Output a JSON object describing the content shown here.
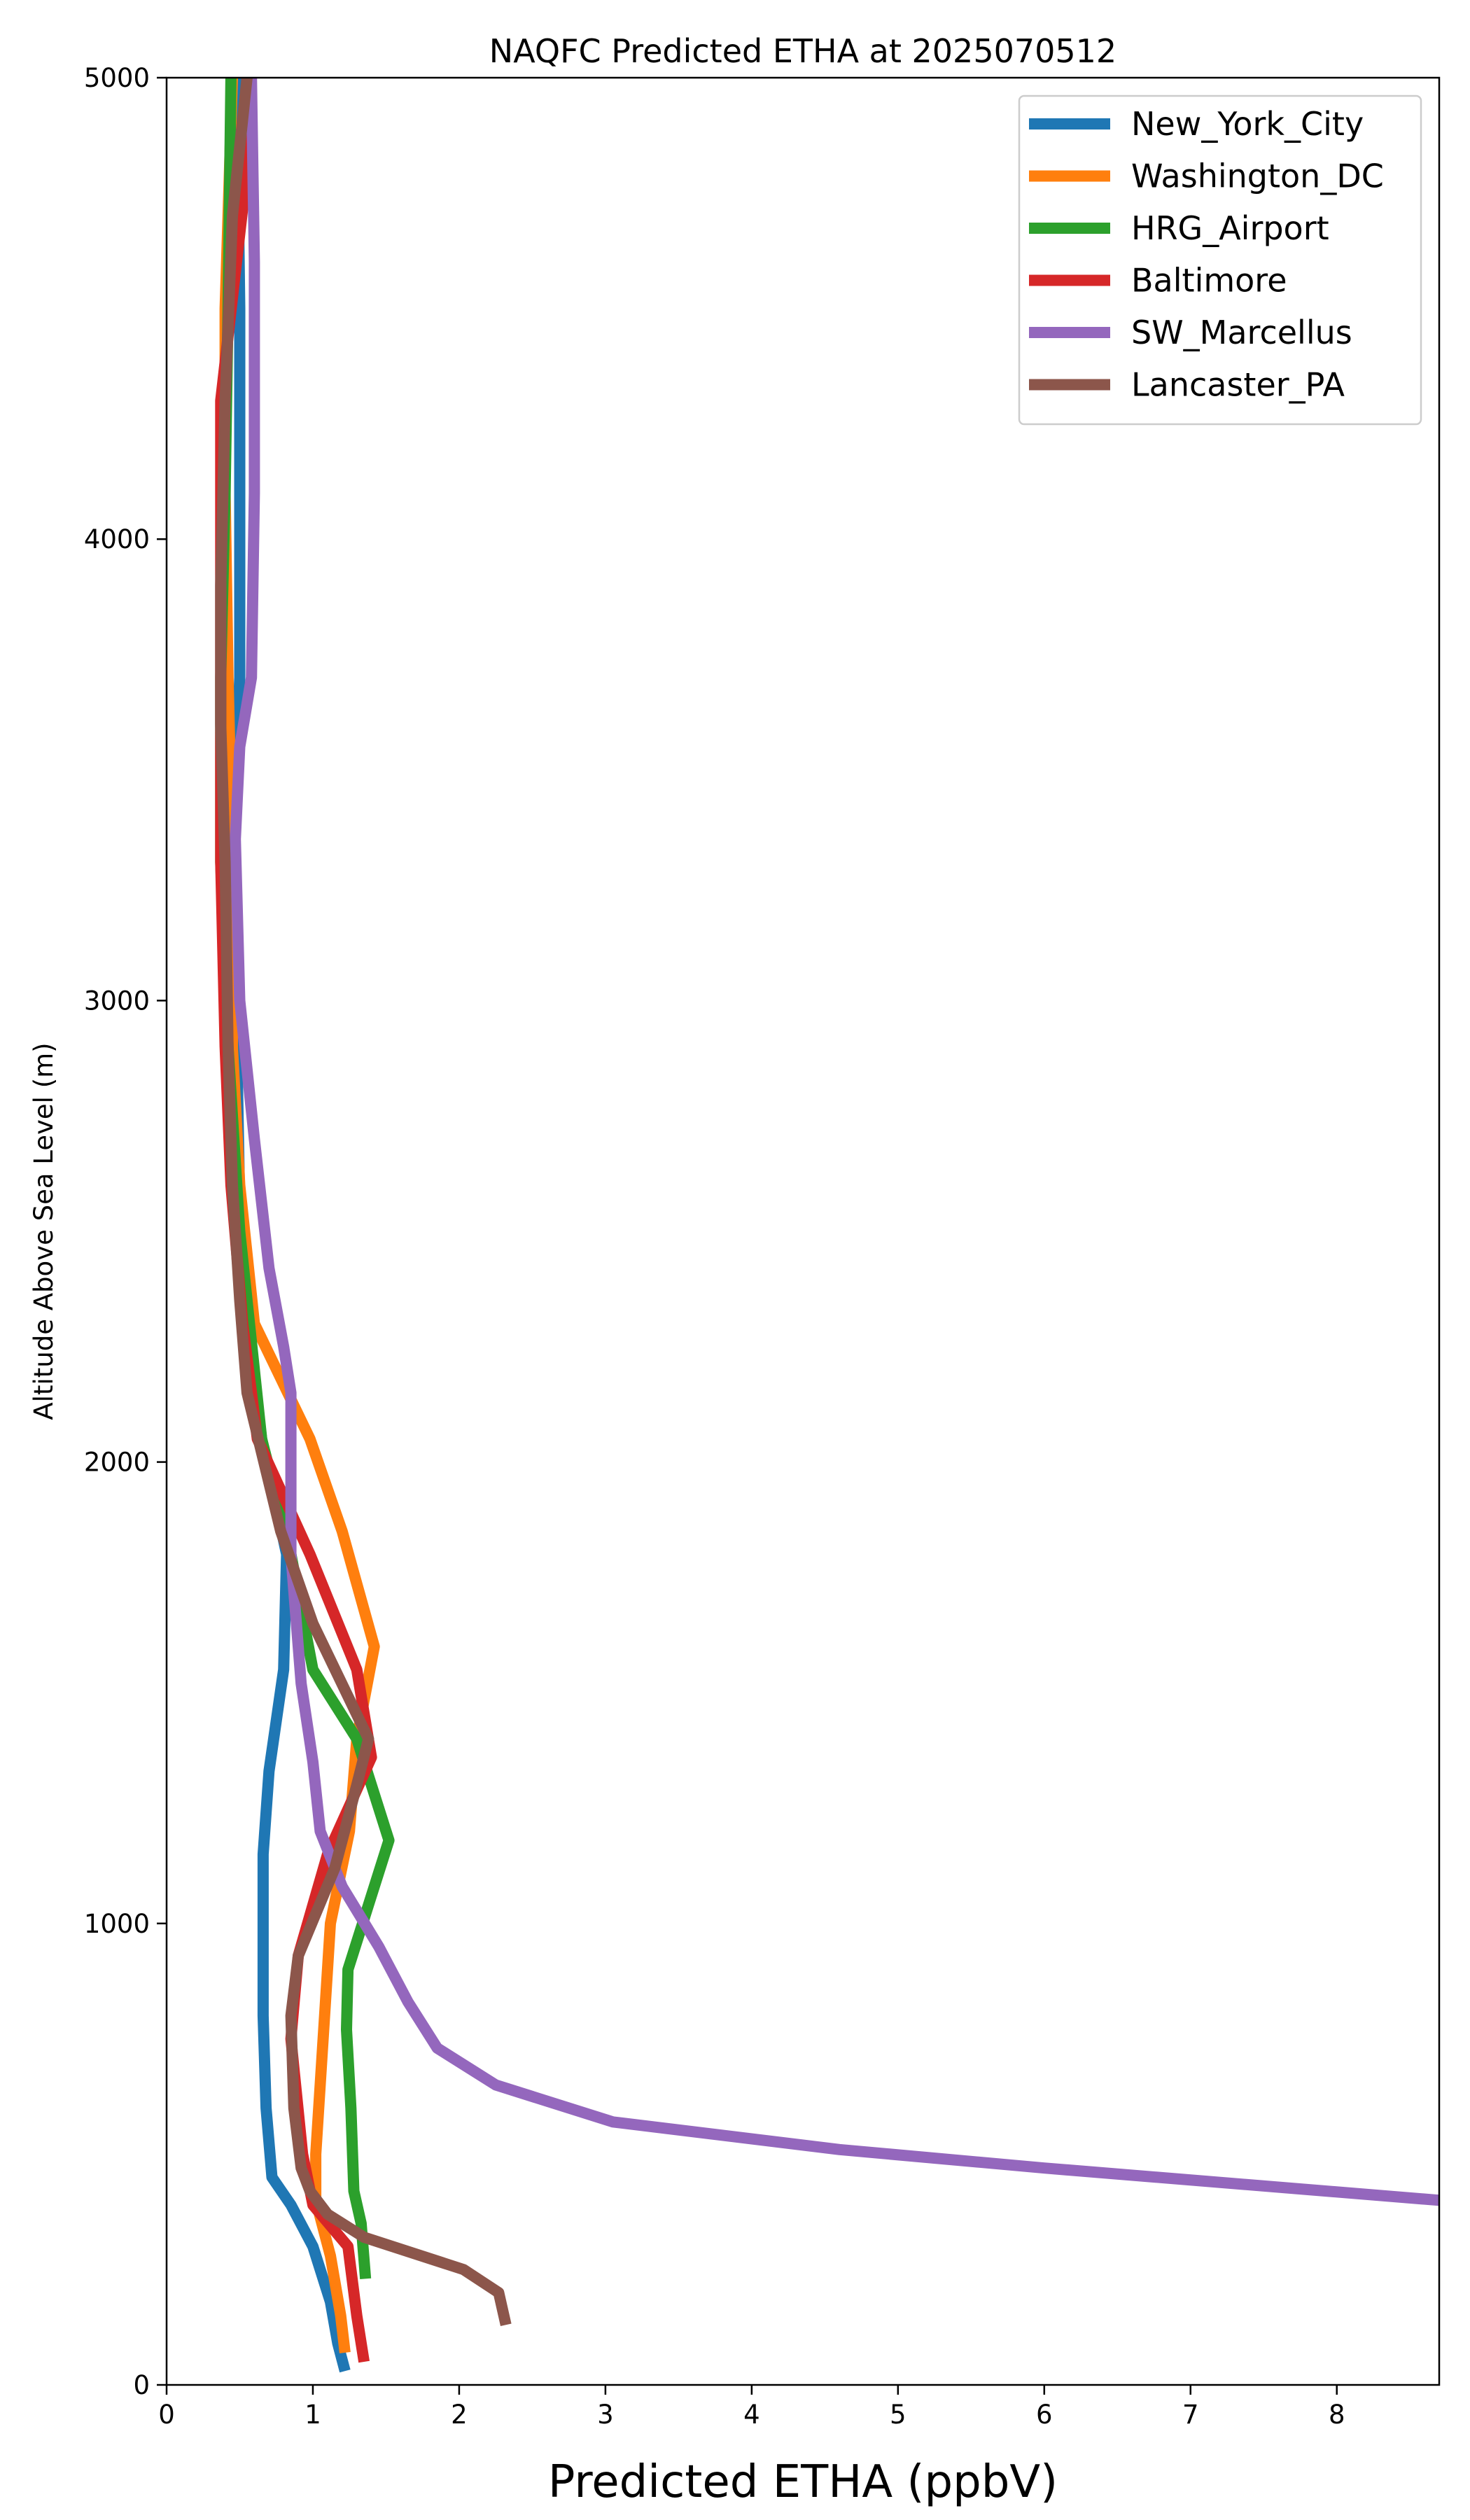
{
  "chart_data": {
    "type": "line",
    "title": "NAQFC Predicted ETHA at 2025070512",
    "xlabel": "Predicted ETHA (ppbV)",
    "ylabel": "Altitude Above Sea Level (m)",
    "xlim": [
      0,
      8.7
    ],
    "ylim": [
      0,
      5000
    ],
    "xticks": [
      0,
      1,
      2,
      3,
      4,
      5,
      6,
      7,
      8
    ],
    "yticks": [
      0,
      1000,
      2000,
      3000,
      4000,
      5000
    ],
    "grid": false,
    "legend_position": "top-right",
    "series": [
      {
        "name": "New_York_City",
        "color": "#1f77b4",
        "points": [
          [
            1.22,
            30
          ],
          [
            1.17,
            90
          ],
          [
            1.12,
            180
          ],
          [
            1.0,
            300
          ],
          [
            0.85,
            390
          ],
          [
            0.72,
            450
          ],
          [
            0.68,
            600
          ],
          [
            0.66,
            800
          ],
          [
            0.66,
            1000
          ],
          [
            0.66,
            1150
          ],
          [
            0.7,
            1330
          ],
          [
            0.8,
            1550
          ],
          [
            0.82,
            1800
          ],
          [
            0.65,
            2050
          ],
          [
            0.55,
            2300
          ],
          [
            0.5,
            2550
          ],
          [
            0.48,
            2900
          ],
          [
            0.45,
            3300
          ],
          [
            0.5,
            3700
          ],
          [
            0.5,
            4100
          ],
          [
            0.5,
            4500
          ],
          [
            0.48,
            5000
          ]
        ]
      },
      {
        "name": "Washington_DC",
        "color": "#ff7f0e",
        "points": [
          [
            1.22,
            70
          ],
          [
            1.19,
            150
          ],
          [
            1.12,
            280
          ],
          [
            1.02,
            400
          ],
          [
            1.02,
            500
          ],
          [
            1.08,
            800
          ],
          [
            1.12,
            1000
          ],
          [
            1.25,
            1200
          ],
          [
            1.3,
            1400
          ],
          [
            1.42,
            1600
          ],
          [
            1.2,
            1850
          ],
          [
            0.98,
            2050
          ],
          [
            0.6,
            2300
          ],
          [
            0.5,
            2600
          ],
          [
            0.45,
            2900
          ],
          [
            0.45,
            3300
          ],
          [
            0.42,
            3700
          ],
          [
            0.4,
            4100
          ],
          [
            0.4,
            4500
          ],
          [
            0.45,
            5000
          ]
        ]
      },
      {
        "name": "HRG_Airport",
        "color": "#2ca02c",
        "points": [
          [
            1.36,
            230
          ],
          [
            1.33,
            350
          ],
          [
            1.28,
            420
          ],
          [
            1.26,
            600
          ],
          [
            1.23,
            770
          ],
          [
            1.24,
            900
          ],
          [
            1.52,
            1180
          ],
          [
            1.3,
            1400
          ],
          [
            1.0,
            1550
          ],
          [
            0.85,
            1800
          ],
          [
            0.65,
            2050
          ],
          [
            0.5,
            2500
          ],
          [
            0.42,
            2900
          ],
          [
            0.37,
            3300
          ],
          [
            0.37,
            3700
          ],
          [
            0.4,
            4100
          ],
          [
            0.42,
            4500
          ],
          [
            0.44,
            5000
          ]
        ]
      },
      {
        "name": "Baltimore",
        "color": "#d62728",
        "points": [
          [
            1.35,
            50
          ],
          [
            1.3,
            150
          ],
          [
            1.24,
            300
          ],
          [
            1.0,
            390
          ],
          [
            0.93,
            500
          ],
          [
            0.85,
            750
          ],
          [
            0.9,
            930
          ],
          [
            1.1,
            1150
          ],
          [
            1.4,
            1360
          ],
          [
            1.3,
            1550
          ],
          [
            0.98,
            1800
          ],
          [
            0.62,
            2050
          ],
          [
            0.52,
            2300
          ],
          [
            0.44,
            2600
          ],
          [
            0.4,
            2900
          ],
          [
            0.37,
            3300
          ],
          [
            0.37,
            3800
          ],
          [
            0.37,
            4300
          ],
          [
            0.55,
            4800
          ],
          [
            0.55,
            5000
          ]
        ]
      },
      {
        "name": "SW_Marcellus",
        "color": "#9467bd",
        "points": [
          [
            8.7,
            400
          ],
          [
            6.0,
            470
          ],
          [
            4.6,
            510
          ],
          [
            3.05,
            570
          ],
          [
            2.25,
            650
          ],
          [
            1.85,
            730
          ],
          [
            1.65,
            830
          ],
          [
            1.45,
            950
          ],
          [
            1.2,
            1080
          ],
          [
            1.05,
            1200
          ],
          [
            1.0,
            1350
          ],
          [
            0.92,
            1520
          ],
          [
            0.85,
            1800
          ],
          [
            0.85,
            2150
          ],
          [
            0.8,
            2250
          ],
          [
            0.7,
            2420
          ],
          [
            0.6,
            2700
          ],
          [
            0.5,
            3000
          ],
          [
            0.47,
            3350
          ],
          [
            0.5,
            3550
          ],
          [
            0.58,
            3700
          ],
          [
            0.6,
            4100
          ],
          [
            0.6,
            4600
          ],
          [
            0.58,
            5000
          ]
        ]
      },
      {
        "name": "Lancaster_PA",
        "color": "#8c564b",
        "points": [
          [
            2.32,
            130
          ],
          [
            2.27,
            200
          ],
          [
            2.03,
            250
          ],
          [
            1.35,
            320
          ],
          [
            1.1,
            370
          ],
          [
            0.98,
            420
          ],
          [
            0.92,
            470
          ],
          [
            0.87,
            600
          ],
          [
            0.85,
            800
          ],
          [
            0.9,
            930
          ],
          [
            1.15,
            1120
          ],
          [
            1.3,
            1300
          ],
          [
            1.38,
            1400
          ],
          [
            1.0,
            1650
          ],
          [
            0.78,
            1850
          ],
          [
            0.55,
            2150
          ],
          [
            0.5,
            2350
          ],
          [
            0.45,
            2600
          ],
          [
            0.42,
            2900
          ],
          [
            0.4,
            3300
          ],
          [
            0.37,
            3600
          ],
          [
            0.37,
            3900
          ],
          [
            0.4,
            4300
          ],
          [
            0.45,
            4700
          ],
          [
            0.55,
            5000
          ]
        ]
      }
    ]
  }
}
